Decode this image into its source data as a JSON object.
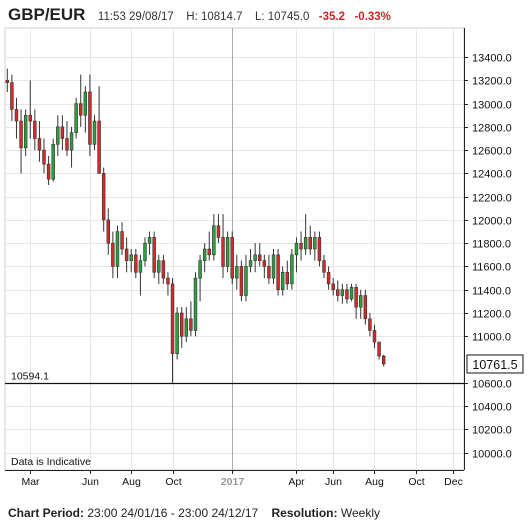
{
  "header": {
    "symbol": "GBP/EUR",
    "time": "11:53 29/08/17",
    "high": "H: 10814.7",
    "low": "L: 10745.0",
    "change": "-35.2",
    "change_pct": "-0.33%"
  },
  "footer": {
    "period_label": "Chart Period:",
    "period_value": "23:00 24/01/16 - 23:00 24/12/17",
    "resolution_label": "Resolution:",
    "resolution_value": "Weekly"
  },
  "indicative_note": "Data is Indicative",
  "colors": {
    "up": "#2e9e3e",
    "down": "#d42a2a",
    "grid": "#e6e6e6",
    "axis": "#222222"
  },
  "chart_data": {
    "type": "candlestick",
    "title": "GBP/EUR",
    "ylim": [
      9850,
      13650
    ],
    "y_ticks": [
      "13400.0",
      "13200.0",
      "13000.0",
      "12800.0",
      "12600.0",
      "12400.0",
      "12200.0",
      "12000.0",
      "11800.0",
      "11600.0",
      "11400.0",
      "11200.0",
      "11000.0",
      "10600.0",
      "10400.0",
      "10200.0",
      "10000.0"
    ],
    "y_tick_values": [
      13400,
      13200,
      13000,
      12800,
      12600,
      12400,
      12200,
      12000,
      11800,
      11600,
      11400,
      11200,
      11000,
      10600,
      10400,
      10200,
      10000
    ],
    "x_labels": [
      "Mar",
      "Jun",
      "Aug",
      "Oct",
      "2017",
      "Apr",
      "Jun",
      "Aug",
      "Oct",
      "Dec"
    ],
    "x_label_index": [
      5,
      18,
      27,
      36,
      49,
      63,
      71,
      80,
      89,
      97
    ],
    "n_weeks": 100,
    "year_marker_index": 49,
    "reference_line": {
      "label": "10594.1",
      "value": 10594.1
    },
    "last_price": {
      "label": "10761.5",
      "value": 10761.5
    },
    "candles": [
      [
        13200,
        13300,
        13100,
        13180
      ],
      [
        13180,
        13250,
        12850,
        12950
      ],
      [
        12950,
        13050,
        12700,
        12850
      ],
      [
        12850,
        12950,
        12400,
        12620
      ],
      [
        12620,
        12950,
        12550,
        12900
      ],
      [
        12900,
        13200,
        12700,
        12850
      ],
      [
        12850,
        12950,
        12600,
        12700
      ],
      [
        12700,
        12850,
        12500,
        12600
      ],
      [
        12600,
        12700,
        12400,
        12480
      ],
      [
        12480,
        12550,
        12300,
        12350
      ],
      [
        12350,
        12700,
        12330,
        12650
      ],
      [
        12650,
        12900,
        12550,
        12800
      ],
      [
        12800,
        12900,
        12600,
        12700
      ],
      [
        12700,
        12850,
        12550,
        12600
      ],
      [
        12600,
        12800,
        12450,
        12750
      ],
      [
        12750,
        13050,
        12700,
        13000
      ],
      [
        13000,
        13250,
        12800,
        12900
      ],
      [
        12900,
        13150,
        12750,
        13100
      ],
      [
        13100,
        13250,
        12550,
        12650
      ],
      [
        12650,
        12900,
        12600,
        12850
      ],
      [
        12850,
        13150,
        12400,
        12400
      ],
      [
        12400,
        12450,
        11900,
        12000
      ],
      [
        12000,
        12100,
        11700,
        11800
      ],
      [
        11800,
        11900,
        11500,
        11600
      ],
      [
        11600,
        11950,
        11500,
        11900
      ],
      [
        11900,
        11980,
        11700,
        11750
      ],
      [
        11750,
        11850,
        11550,
        11650
      ],
      [
        11650,
        11750,
        11550,
        11700
      ],
      [
        11700,
        11750,
        11500,
        11550
      ],
      [
        11550,
        11700,
        11350,
        11650
      ],
      [
        11650,
        11850,
        11600,
        11800
      ],
      [
        11800,
        11900,
        11700,
        11850
      ],
      [
        11850,
        11900,
        11500,
        11550
      ],
      [
        11550,
        11700,
        11450,
        11650
      ],
      [
        11650,
        11700,
        11450,
        11500
      ],
      [
        11500,
        11550,
        11350,
        11450
      ],
      [
        11450,
        11500,
        10600,
        10850
      ],
      [
        10850,
        11250,
        10800,
        11200
      ],
      [
        11200,
        11250,
        10900,
        11000
      ],
      [
        11000,
        11250,
        10950,
        11150
      ],
      [
        11150,
        11300,
        11000,
        11050
      ],
      [
        11050,
        11550,
        11000,
        11500
      ],
      [
        11500,
        11700,
        11300,
        11650
      ],
      [
        11650,
        11800,
        11550,
        11750
      ],
      [
        11750,
        11900,
        11650,
        11700
      ],
      [
        11700,
        12050,
        11650,
        11950
      ],
      [
        11950,
        12050,
        11800,
        11850
      ],
      [
        11850,
        12050,
        11500,
        11600
      ],
      [
        11600,
        11900,
        11550,
        11850
      ],
      [
        11850,
        11900,
        11450,
        11500
      ],
      [
        11500,
        11700,
        11400,
        11600
      ],
      [
        11600,
        11650,
        11300,
        11350
      ],
      [
        11350,
        11700,
        11300,
        11600
      ],
      [
        11600,
        11750,
        11550,
        11650
      ],
      [
        11650,
        11800,
        11550,
        11700
      ],
      [
        11700,
        11800,
        11600,
        11650
      ],
      [
        11650,
        11700,
        11500,
        11600
      ],
      [
        11600,
        11700,
        11450,
        11500
      ],
      [
        11500,
        11750,
        11450,
        11700
      ],
      [
        11700,
        11750,
        11350,
        11400
      ],
      [
        11400,
        11600,
        11350,
        11550
      ],
      [
        11550,
        11650,
        11400,
        11450
      ],
      [
        11450,
        11750,
        11400,
        11700
      ],
      [
        11700,
        11850,
        11550,
        11800
      ],
      [
        11800,
        11900,
        11650,
        11750
      ],
      [
        11750,
        12050,
        11700,
        11850
      ],
      [
        11850,
        11950,
        11700,
        11750
      ],
      [
        11750,
        11900,
        11650,
        11850
      ],
      [
        11850,
        11900,
        11600,
        11650
      ],
      [
        11650,
        11700,
        11500,
        11550
      ],
      [
        11550,
        11600,
        11400,
        11450
      ],
      [
        11450,
        11500,
        11350,
        11400
      ],
      [
        11400,
        11480,
        11300,
        11350
      ],
      [
        11350,
        11450,
        11280,
        11400
      ],
      [
        11400,
        11450,
        11280,
        11320
      ],
      [
        11320,
        11450,
        11300,
        11420
      ],
      [
        11420,
        11450,
        11150,
        11250
      ],
      [
        11250,
        11400,
        11150,
        11350
      ],
      [
        11350,
        11400,
        11100,
        11150
      ],
      [
        11150,
        11200,
        11000,
        11050
      ],
      [
        11050,
        11100,
        10900,
        10950
      ],
      [
        10950,
        10950,
        10800,
        10830
      ],
      [
        10830,
        10840,
        10740,
        10761.5
      ]
    ]
  }
}
